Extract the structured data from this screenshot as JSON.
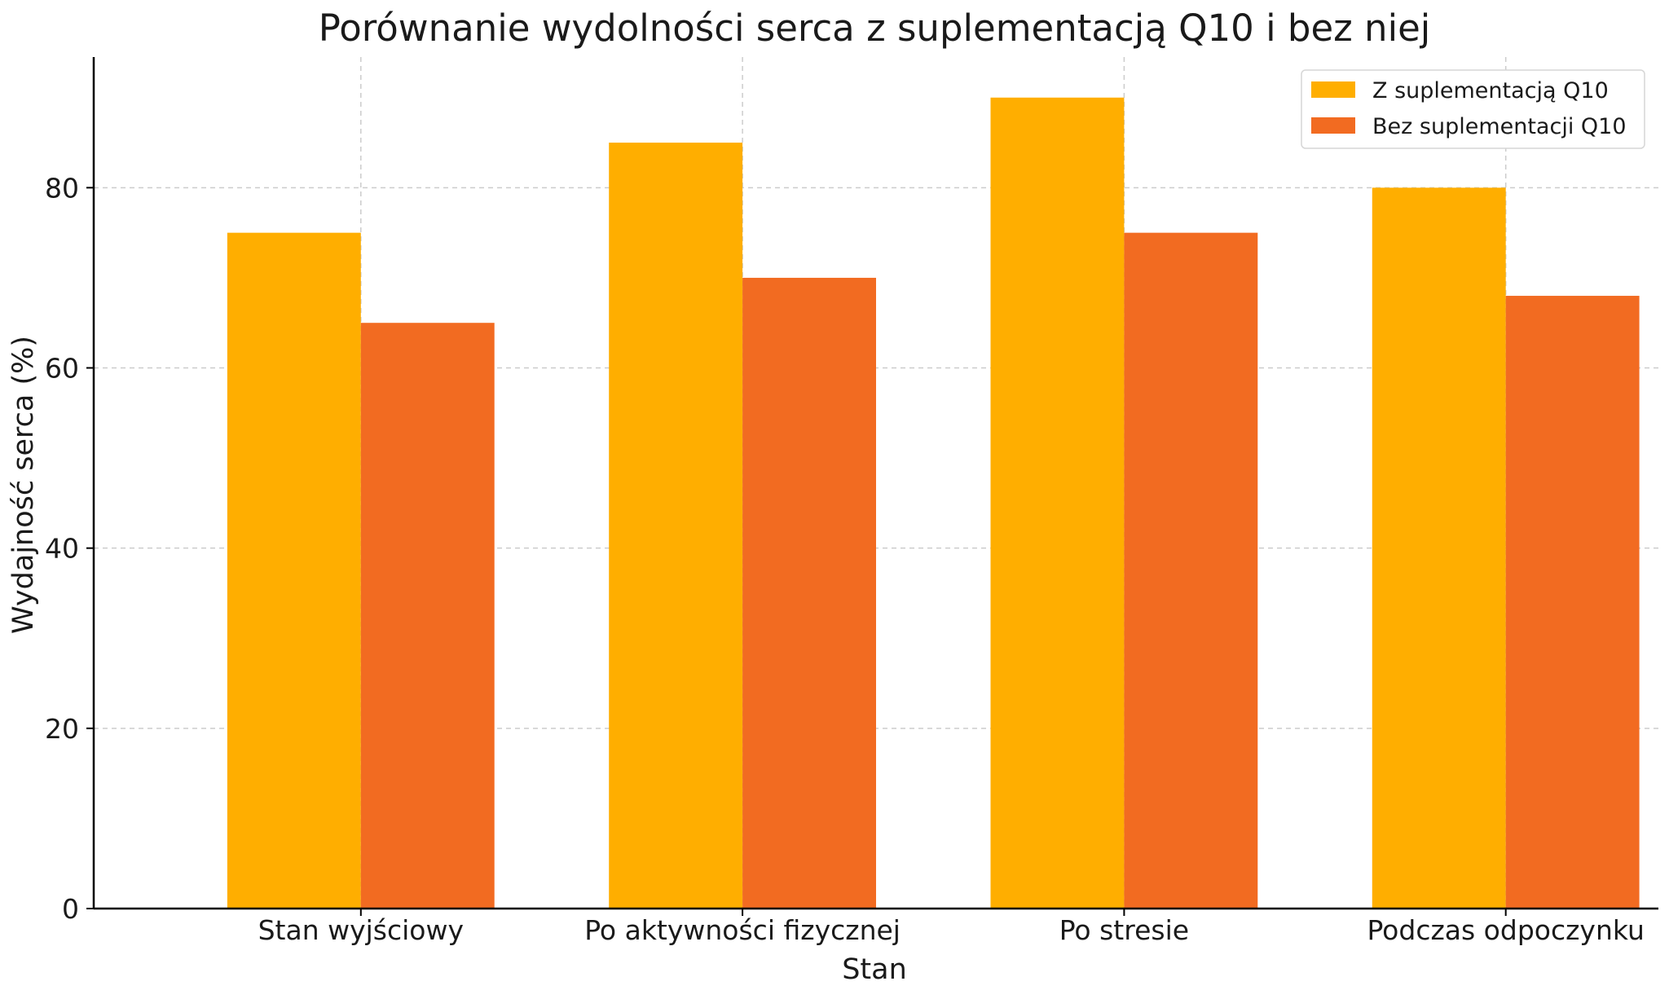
{
  "chart_data": {
    "type": "bar",
    "title": "Porównanie wydolności serca z suplementacją Q10 i bez niej",
    "xlabel": "Stan",
    "ylabel": "Wydajność serca (%)",
    "categories": [
      "Stan wyjściowy",
      "Po aktywności fizycznej",
      "Po stresie",
      "Podczas odpoczynku"
    ],
    "series": [
      {
        "name": "Z suplementacją Q10",
        "values": [
          75,
          85,
          90,
          80
        ],
        "color": "#FFAE00"
      },
      {
        "name": "Bez suplementacji Q10",
        "values": [
          65,
          70,
          75,
          68
        ],
        "color": "#F26B21"
      }
    ],
    "ylim": [
      0,
      94.5
    ],
    "yticks": [
      0,
      20,
      40,
      60,
      80
    ],
    "grid": true,
    "legend_position": "top-right"
  }
}
